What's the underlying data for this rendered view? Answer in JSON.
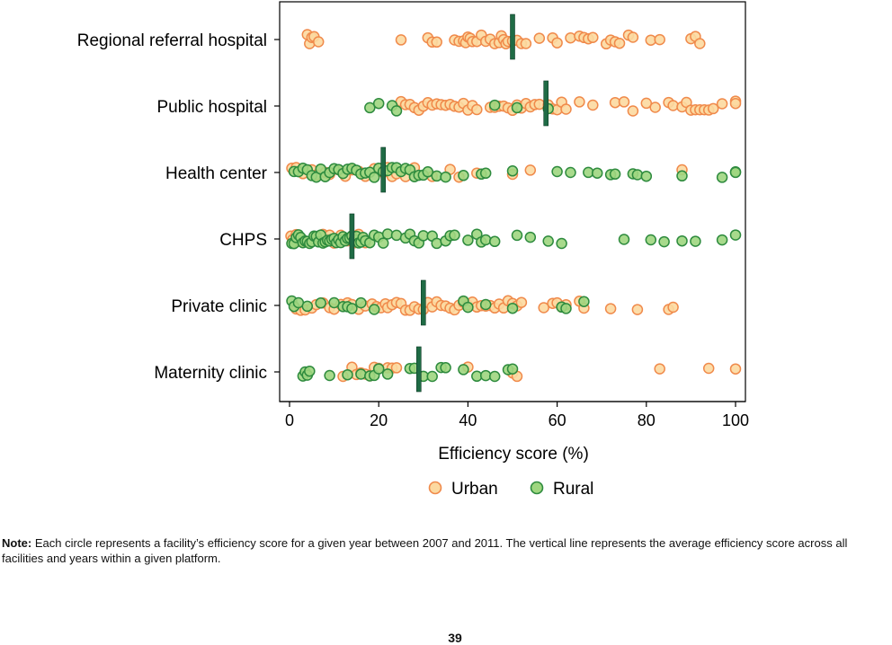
{
  "chart_data": {
    "type": "scatter",
    "xlabel": "Efficiency score (%)",
    "xlim": [
      0,
      100
    ],
    "xticks": [
      "0",
      "20",
      "40",
      "60",
      "80",
      "100"
    ],
    "categories": [
      "Regional referral hospital",
      "Public hospital",
      "Health center",
      "CHPS",
      "Private clinic",
      "Maternity clinic"
    ],
    "legend": {
      "placement": "bottom",
      "entries": [
        "Urban",
        "Rural"
      ]
    },
    "colors": {
      "urban_fill": "#FCD9A0",
      "urban_stroke": "#F08A4B",
      "rural_fill": "#9ED67F",
      "rural_stroke": "#2E8B3E",
      "mean_line": "#1F6B45"
    },
    "series": [
      {
        "name": "Urban",
        "points": {
          "Regional referral hospital": [
            4,
            4.5,
            5,
            5.5,
            6.5,
            25,
            31,
            32,
            33,
            37,
            38,
            39,
            39.5,
            40,
            40.5,
            41,
            42,
            43,
            44,
            45,
            46,
            47,
            47.5,
            48,
            48.5,
            49,
            50,
            51,
            52,
            53,
            56,
            59,
            60,
            63,
            65,
            66,
            67,
            68,
            71,
            72,
            73,
            74,
            76,
            77,
            81,
            83,
            90,
            91,
            92
          ],
          "Public hospital": [
            25,
            26,
            27,
            28,
            29,
            30,
            31,
            32,
            33,
            34,
            35,
            36,
            37,
            38,
            39,
            40,
            41,
            42,
            45,
            46,
            47,
            48,
            49,
            50,
            51,
            52,
            53,
            54,
            55,
            56,
            58,
            59,
            60,
            61,
            62,
            65,
            68,
            73,
            75,
            77,
            80,
            82,
            85,
            86,
            88,
            89,
            90,
            91,
            92,
            93,
            94,
            95,
            97,
            100,
            100
          ],
          "Health center": [
            0.5,
            1.5,
            3,
            5,
            6,
            8,
            9,
            11,
            12.5,
            14,
            15.5,
            17,
            19,
            21,
            22,
            23,
            24,
            26,
            28,
            32,
            36,
            38,
            42,
            50,
            54,
            88
          ],
          "CHPS": [
            0.3,
            0.7,
            1.5,
            2.5,
            3.5,
            5,
            6,
            7.5,
            9,
            10,
            11.5,
            13,
            14.5,
            15.5,
            17
          ],
          "Private clinic": [
            1.5,
            2.5,
            3.5,
            5,
            6,
            7.5,
            9,
            10,
            11.5,
            13,
            14,
            15.5,
            17,
            18.5,
            19.5,
            20.5,
            21.5,
            22,
            23,
            24,
            25,
            26,
            27,
            28,
            29,
            30,
            31,
            32,
            33,
            34,
            35,
            36,
            37,
            38,
            39,
            40,
            41,
            42,
            43,
            44,
            45,
            46,
            47,
            48,
            49,
            50,
            51,
            52,
            57,
            59,
            60,
            61,
            62,
            65,
            66,
            72,
            78,
            85,
            86
          ],
          "Maternity clinic": [
            12,
            14,
            15,
            16,
            17,
            18,
            19,
            20,
            22,
            23,
            24,
            40,
            50,
            51,
            83,
            94,
            100
          ]
        }
      },
      {
        "name": "Rural",
        "points": {
          "Public hospital": [
            18,
            20,
            23,
            24,
            46,
            51,
            58
          ],
          "Health center": [
            1,
            2,
            3,
            4,
            5,
            6,
            7,
            8,
            9,
            10,
            11,
            12,
            13,
            14,
            15,
            16,
            17,
            18,
            19,
            20,
            21,
            22,
            23,
            24,
            25,
            26,
            27,
            28,
            29,
            30,
            31,
            33,
            35,
            39,
            43,
            44,
            50,
            60,
            63,
            67,
            69,
            72,
            73,
            77,
            78,
            80,
            88,
            97,
            100,
            100
          ],
          "CHPS": [
            0.5,
            1,
            1.5,
            2,
            2.5,
            3,
            3.5,
            4,
            4.5,
            5,
            5.5,
            6,
            6.5,
            7,
            7.5,
            8,
            8.5,
            9,
            9.5,
            10,
            10.5,
            11,
            11.5,
            12,
            12.5,
            13,
            13.5,
            14,
            14.5,
            15,
            15.5,
            16,
            16.5,
            17,
            18,
            19,
            20,
            21,
            22,
            24,
            26,
            27,
            28,
            29,
            30,
            32,
            33,
            35,
            36,
            37,
            40,
            42,
            43,
            44,
            46,
            51,
            54,
            58,
            61,
            75,
            81,
            84,
            88,
            91,
            97,
            100
          ],
          "Private clinic": [
            0.5,
            1,
            2,
            4,
            7,
            10,
            12,
            13,
            14,
            16,
            19,
            39,
            40,
            44,
            50,
            61,
            62,
            66
          ],
          "Maternity clinic": [
            3,
            3.5,
            4,
            4.5,
            9,
            13,
            16,
            18,
            19,
            20,
            22,
            27,
            28,
            30,
            32,
            34,
            35,
            39,
            42,
            44,
            46,
            49,
            50
          ]
        }
      }
    ],
    "means": {
      "Regional referral hospital": 50,
      "Public hospital": 57.5,
      "Health center": 21,
      "CHPS": 14,
      "Private clinic": 30,
      "Maternity clinic": 29
    }
  },
  "note": {
    "label": "Note:",
    "text": "Each circle represents a facility’s efficiency score for a given year between 2007 and 2011. The vertical line represents the average efficiency score across all facilities and years within a given platform."
  },
  "page_number": "39"
}
